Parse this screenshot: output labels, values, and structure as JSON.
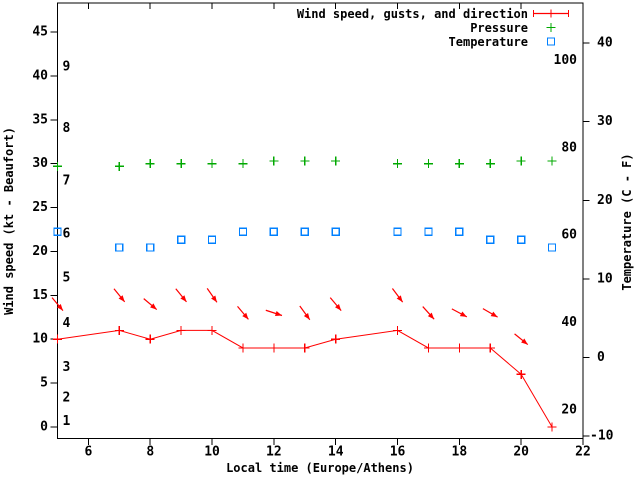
{
  "figure": {
    "background_color": "#ffffff",
    "text_color": "#000000",
    "legend": [
      {
        "label": "Wind speed, gusts, and direction",
        "marker": "red-errorbar-line-with-plus",
        "color": "#ff0000"
      },
      {
        "label": "Pressure",
        "marker": "green-plus",
        "color": "#00a800"
      },
      {
        "label": "Temperature",
        "marker": "blue-open-square",
        "color": "#0080ff"
      }
    ],
    "x_axis": {
      "label": "Local time (Europe/Athens)",
      "tick_labels": [
        "6",
        "8",
        "10",
        "12",
        "14",
        "16",
        "18",
        "20",
        "22"
      ],
      "ticks": [
        6,
        8,
        10,
        12,
        14,
        16,
        18,
        20,
        22
      ]
    },
    "y_axis_left": {
      "label": "Wind speed (kt - Beaufort)",
      "tick_labels": [
        "0",
        "5",
        "10",
        "15",
        "20",
        "25",
        "30",
        "35",
        "40",
        "45"
      ],
      "ticks": [
        0,
        5,
        10,
        15,
        20,
        25,
        30,
        35,
        40,
        45
      ],
      "inner_beaufort_labels": [
        {
          "label": "1",
          "kt": 0.6
        },
        {
          "label": "2",
          "kt": 3.3
        },
        {
          "label": "3",
          "kt": 6.8
        },
        {
          "label": "4",
          "kt": 11.8
        },
        {
          "label": "5",
          "kt": 17.0
        },
        {
          "label": "6",
          "kt": 22.0
        },
        {
          "label": "7",
          "kt": 28.0
        },
        {
          "label": "8",
          "kt": 34.0
        },
        {
          "label": "9",
          "kt": 41.0
        }
      ]
    },
    "y_axis_right": {
      "label": "Temperature (C - F)",
      "tick_labels": [
        "-10",
        "0",
        "10",
        "20",
        "30",
        "40"
      ],
      "ticks": [
        -10,
        0,
        10,
        20,
        30,
        40
      ],
      "inner_fahrenheit_labels": [
        {
          "label": "20",
          "f": 20
        },
        {
          "label": "40",
          "f": 40
        },
        {
          "label": "60",
          "f": 60
        },
        {
          "label": "80",
          "f": 80
        },
        {
          "label": "100",
          "f": 100
        }
      ]
    }
  },
  "chart_data": {
    "type": "line",
    "title": "",
    "xlabel": "Local time (Europe/Athens)",
    "ylabel_left": "Wind speed (kt - Beaufort)",
    "ylabel_right": "Temperature (C - F)",
    "xlim": [
      5,
      22
    ],
    "ylim_left_kt": [
      -1.31,
      48.3
    ],
    "ylim_right_c": [
      -10.3,
      45.1
    ],
    "grid": false,
    "legend_position": "top-right",
    "x": [
      5,
      7,
      8,
      9,
      10,
      11,
      12,
      13,
      14,
      16,
      17,
      18,
      19,
      20,
      21
    ],
    "series": [
      {
        "name": "Wind speed (kt)",
        "axis": "left",
        "color": "#ff0000",
        "style": "linespoints-plus",
        "values": [
          10,
          11,
          10,
          11,
          11,
          9,
          9,
          9,
          10,
          11,
          9,
          9,
          9,
          6,
          0
        ]
      },
      {
        "name": "Wind gusts and direction (kt)",
        "axis": "left",
        "color": "#ff0000",
        "style": "direction-arrows",
        "values": [
          14,
          15,
          14,
          15,
          15,
          13,
          13,
          13,
          14,
          15,
          13,
          13,
          13,
          10,
          null
        ],
        "arrow_angle_deg_screen": [
          50,
          51,
          40,
          51,
          55,
          50,
          18,
          54,
          50,
          53,
          48,
          28,
          30,
          39,
          null
        ]
      },
      {
        "name": "Pressure",
        "axis": "left",
        "color": "#00a800",
        "style": "points-plus",
        "values": [
          29.7,
          29.7,
          30.0,
          30.0,
          30.0,
          30.0,
          30.3,
          30.3,
          30.3,
          30.0,
          30.0,
          30.0,
          30.0,
          30.3,
          30.3
        ]
      },
      {
        "name": "Temperature (C)",
        "axis": "right",
        "color": "#0080ff",
        "style": "points-open-square",
        "values": [
          16,
          14,
          14,
          15,
          15,
          16,
          16,
          16,
          16,
          16,
          16,
          16,
          15,
          15,
          14
        ]
      }
    ]
  }
}
